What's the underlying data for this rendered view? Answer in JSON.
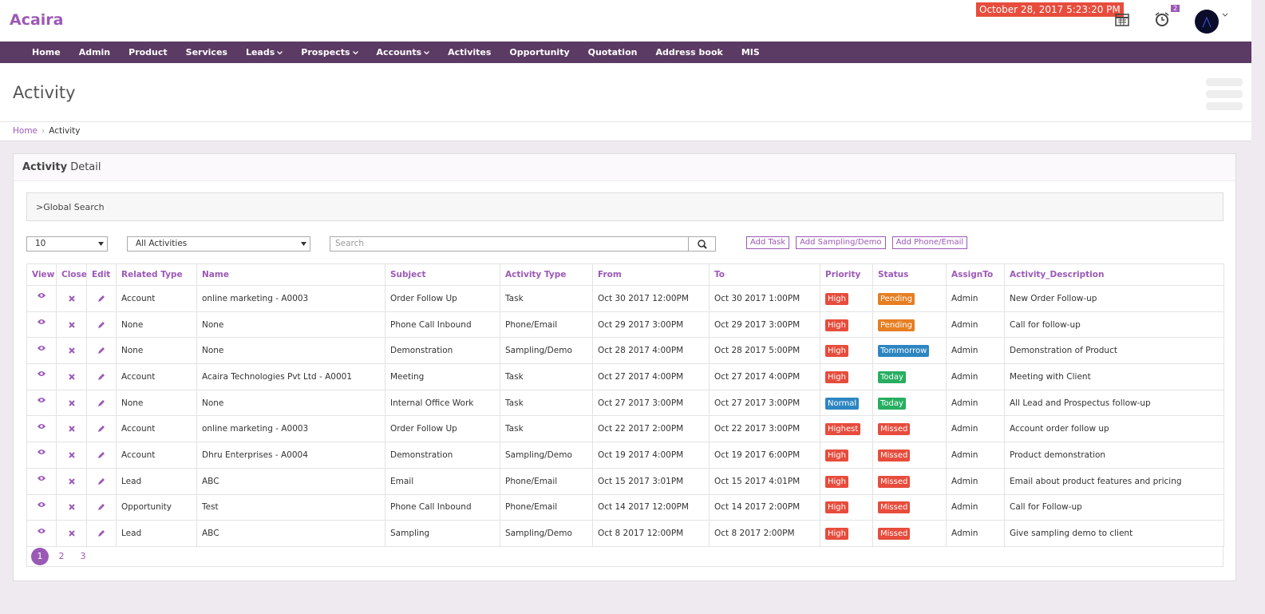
{
  "header": {
    "brand": "Acaira",
    "datetime": "October 28, 2017 5:23:20 PM",
    "alarm_badge": "2"
  },
  "nav": [
    {
      "label": "Home"
    },
    {
      "label": "Admin"
    },
    {
      "label": "Product"
    },
    {
      "label": "Services"
    },
    {
      "label": "Leads",
      "dropdown": true
    },
    {
      "label": "Prospects",
      "dropdown": true
    },
    {
      "label": "Accounts",
      "dropdown": true
    },
    {
      "label": "Activites"
    },
    {
      "label": "Opportunity"
    },
    {
      "label": "Quotation"
    },
    {
      "label": "Address book"
    },
    {
      "label": "MIS"
    }
  ],
  "page_title": "Activity",
  "breadcrumb": [
    "Home",
    "Activity"
  ],
  "panel": {
    "title_bold": "Activity",
    "title_rest": "Detail"
  },
  "global_search": ">Global Search",
  "controls": {
    "page_size": "10",
    "filter": "All Activities",
    "search_placeholder": "Search",
    "buttons": [
      "Add Task",
      "Add Sampling/Demo",
      "Add Phone/Email"
    ]
  },
  "table": {
    "columns": [
      "View",
      "Close",
      "Edit",
      "Related Type",
      "Name",
      "Subject",
      "Activity Type",
      "From",
      "To",
      "Priority",
      "Status",
      "AssignTo",
      "Activity_Description"
    ],
    "rows": [
      [
        "Account",
        "online marketing - A0003",
        "Order Follow Up",
        "Task",
        "Oct 30 2017 12:00PM",
        "Oct 30 2017 1:00PM",
        "High",
        "Pending",
        "Admin",
        "New Order Follow-up"
      ],
      [
        "None",
        "None",
        "Phone Call Inbound",
        "Phone/Email",
        "Oct 29 2017 3:00PM",
        "Oct 29 2017 3:00PM",
        "High",
        "Pending",
        "Admin",
        "Call for follow-up"
      ],
      [
        "None",
        "None",
        "Demonstration",
        "Sampling/Demo",
        "Oct 28 2017 4:00PM",
        "Oct 28 2017 5:00PM",
        "High",
        "Tommorrow",
        "Admin",
        "Demonstration of Product"
      ],
      [
        "Account",
        "Acaira Technologies Pvt Ltd - A0001",
        "Meeting",
        "Task",
        "Oct 27 2017 4:00PM",
        "Oct 27 2017 4:00PM",
        "High",
        "Today",
        "Admin",
        "Meeting with Client"
      ],
      [
        "None",
        "None",
        "Internal Office Work",
        "Task",
        "Oct 27 2017 3:00PM",
        "Oct 27 2017 3:00PM",
        "Normal",
        "Today",
        "Admin",
        "All Lead and Prospectus follow-up"
      ],
      [
        "Account",
        "online marketing - A0003",
        "Order Follow Up",
        "Task",
        "Oct 22 2017 2:00PM",
        "Oct 22 2017 3:00PM",
        "Highest",
        "Missed",
        "Admin",
        "Account order follow up"
      ],
      [
        "Account",
        "Dhru Enterprises - A0004",
        "Demonstration",
        "Sampling/Demo",
        "Oct 19 2017 4:00PM",
        "Oct 19 2017 6:00PM",
        "High",
        "Missed",
        "Admin",
        "Product demonstration"
      ],
      [
        "Lead",
        "ABC",
        "Email",
        "Phone/Email",
        "Oct 15 2017 3:01PM",
        "Oct 15 2017 4:01PM",
        "High",
        "Missed",
        "Admin",
        "Email about product features and pricing"
      ],
      [
        "Opportunity",
        "Test",
        "Phone Call Inbound",
        "Phone/Email",
        "Oct 14 2017 12:00PM",
        "Oct 14 2017 2:00PM",
        "High",
        "Missed",
        "Admin",
        "Call for Follow-up"
      ],
      [
        "Lead",
        "ABC",
        "Sampling",
        "Sampling/Demo",
        "Oct 8 2017 12:00PM",
        "Oct 8 2017 2:00PM",
        "High",
        "Missed",
        "Admin",
        "Give sampling demo to client"
      ]
    ],
    "badge_colors": {
      "High": "#e74c3c",
      "Highest": "#e74c3c",
      "Normal": "#2e86c1",
      "Pending": "#e67e22",
      "Tommorrow": "#2e86c1",
      "Today": "#27ae60",
      "Missed": "#e74c3c"
    }
  },
  "pagination": {
    "pages": [
      1,
      2,
      3
    ],
    "active": 0
  }
}
